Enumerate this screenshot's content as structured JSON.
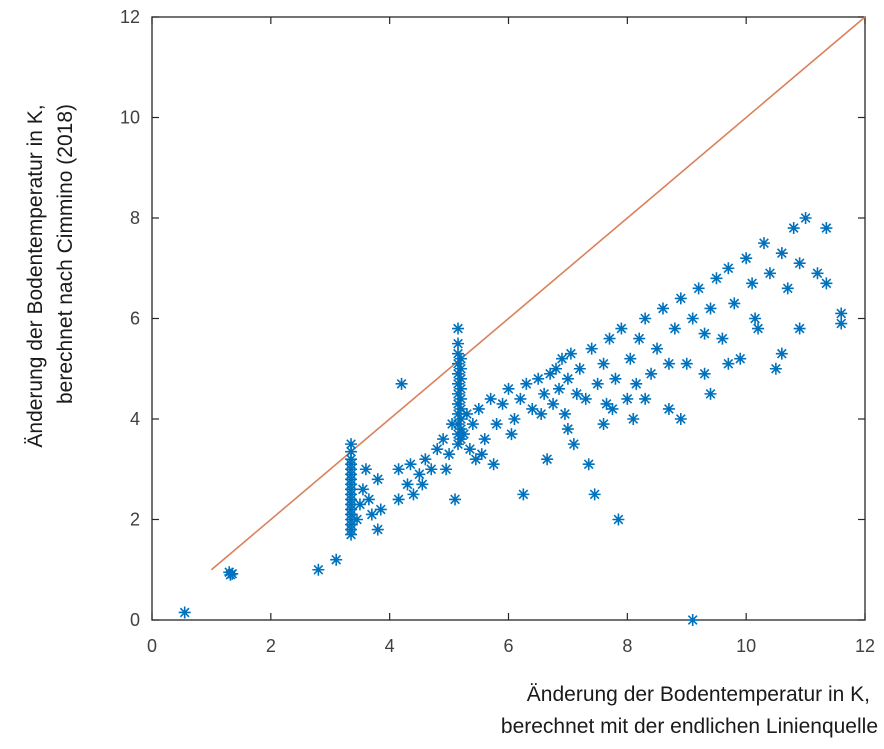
{
  "chart_data": {
    "type": "scatter",
    "xlabel": [
      "Änderung der Bodentemperatur in K,",
      "berechnet mit der endlichen Linienquelle"
    ],
    "ylabel": [
      "Änderung der Bodentemperatur in K,",
      "berechnet nach Cimmino (2018)"
    ],
    "xlim": [
      0,
      12
    ],
    "ylim": [
      0,
      12
    ],
    "xticks": [
      "0",
      "2",
      "4",
      "6",
      "8",
      "10",
      "12"
    ],
    "yticks": [
      "0",
      "2",
      "4",
      "6",
      "8",
      "10",
      "12"
    ],
    "grid": false,
    "legend": "none",
    "colors": {
      "points": "#0072bd",
      "reference_line": "#d9825b",
      "axes": "#262626"
    },
    "reference_line": {
      "x": [
        1,
        12
      ],
      "y": [
        1,
        12
      ]
    },
    "series": [
      {
        "marker": "asterisk",
        "points": [
          [
            0.55,
            0.15
          ],
          [
            1.3,
            0.95
          ],
          [
            1.32,
            0.9
          ],
          [
            1.35,
            0.92
          ],
          [
            2.8,
            1.0
          ],
          [
            3.1,
            1.2
          ],
          [
            3.35,
            1.7
          ],
          [
            3.35,
            1.8
          ],
          [
            3.35,
            1.9
          ],
          [
            3.35,
            2.0
          ],
          [
            3.35,
            2.1
          ],
          [
            3.35,
            2.2
          ],
          [
            3.35,
            2.3
          ],
          [
            3.35,
            2.4
          ],
          [
            3.35,
            2.5
          ],
          [
            3.35,
            2.6
          ],
          [
            3.35,
            2.7
          ],
          [
            3.35,
            2.8
          ],
          [
            3.35,
            2.9
          ],
          [
            3.35,
            3.0
          ],
          [
            3.35,
            3.1
          ],
          [
            3.35,
            3.2
          ],
          [
            3.35,
            3.35
          ],
          [
            3.35,
            3.5
          ],
          [
            3.45,
            2.0
          ],
          [
            3.5,
            2.3
          ],
          [
            3.55,
            2.6
          ],
          [
            3.65,
            2.4
          ],
          [
            3.7,
            2.1
          ],
          [
            3.8,
            1.8
          ],
          [
            3.8,
            2.8
          ],
          [
            3.85,
            2.2
          ],
          [
            3.6,
            3.0
          ],
          [
            4.15,
            2.4
          ],
          [
            4.15,
            3.0
          ],
          [
            4.2,
            4.7
          ],
          [
            4.3,
            2.7
          ],
          [
            4.35,
            3.1
          ],
          [
            4.4,
            2.5
          ],
          [
            4.5,
            2.9
          ],
          [
            4.6,
            3.2
          ],
          [
            4.7,
            3.0
          ],
          [
            4.8,
            3.4
          ],
          [
            4.9,
            3.6
          ],
          [
            5.0,
            3.3
          ],
          [
            5.05,
            3.9
          ],
          [
            5.1,
            2.4
          ],
          [
            5.15,
            3.5
          ],
          [
            5.15,
            3.7
          ],
          [
            5.15,
            3.9
          ],
          [
            5.15,
            4.1
          ],
          [
            5.15,
            4.3
          ],
          [
            5.15,
            4.5
          ],
          [
            5.15,
            4.7
          ],
          [
            5.15,
            4.9
          ],
          [
            5.15,
            5.1
          ],
          [
            5.15,
            5.3
          ],
          [
            5.15,
            5.5
          ],
          [
            5.15,
            5.8
          ],
          [
            5.2,
            3.6
          ],
          [
            5.2,
            3.8
          ],
          [
            5.2,
            4.0
          ],
          [
            5.2,
            4.2
          ],
          [
            5.2,
            4.4
          ],
          [
            5.2,
            4.6
          ],
          [
            5.2,
            4.8
          ],
          [
            5.2,
            5.0
          ],
          [
            5.2,
            5.2
          ],
          [
            5.25,
            3.7
          ],
          [
            5.3,
            4.1
          ],
          [
            5.35,
            3.4
          ],
          [
            5.4,
            3.9
          ],
          [
            5.45,
            3.2
          ],
          [
            5.5,
            4.2
          ],
          [
            5.6,
            3.6
          ],
          [
            5.7,
            4.4
          ],
          [
            5.75,
            3.1
          ],
          [
            5.8,
            3.9
          ],
          [
            5.9,
            4.3
          ],
          [
            6.0,
            4.6
          ],
          [
            6.1,
            4.0
          ],
          [
            6.2,
            4.4
          ],
          [
            6.25,
            2.5
          ],
          [
            6.3,
            4.7
          ],
          [
            6.4,
            4.2
          ],
          [
            6.5,
            4.8
          ],
          [
            6.6,
            4.5
          ],
          [
            6.65,
            3.2
          ],
          [
            6.7,
            4.9
          ],
          [
            6.75,
            4.3
          ],
          [
            6.8,
            5.0
          ],
          [
            6.85,
            4.6
          ],
          [
            6.9,
            5.2
          ],
          [
            6.95,
            4.1
          ],
          [
            7.0,
            3.8
          ],
          [
            7.0,
            4.8
          ],
          [
            7.05,
            5.3
          ],
          [
            7.1,
            3.5
          ],
          [
            7.15,
            4.5
          ],
          [
            7.2,
            5.0
          ],
          [
            7.3,
            4.4
          ],
          [
            7.35,
            3.1
          ],
          [
            7.4,
            5.4
          ],
          [
            7.45,
            2.5
          ],
          [
            7.5,
            4.7
          ],
          [
            7.6,
            5.1
          ],
          [
            7.65,
            4.3
          ],
          [
            7.7,
            5.6
          ],
          [
            7.8,
            4.8
          ],
          [
            7.85,
            2.0
          ],
          [
            7.9,
            5.8
          ],
          [
            8.0,
            4.4
          ],
          [
            8.05,
            5.2
          ],
          [
            8.1,
            4.0
          ],
          [
            8.2,
            5.6
          ],
          [
            8.3,
            6.0
          ],
          [
            8.4,
            4.9
          ],
          [
            8.5,
            5.4
          ],
          [
            8.6,
            6.2
          ],
          [
            8.7,
            4.2
          ],
          [
            8.8,
            5.8
          ],
          [
            8.9,
            6.4
          ],
          [
            9.0,
            5.1
          ],
          [
            9.1,
            6.0
          ],
          [
            9.1,
            0.0
          ],
          [
            9.2,
            6.6
          ],
          [
            9.3,
            4.9
          ],
          [
            9.4,
            6.2
          ],
          [
            9.5,
            6.8
          ],
          [
            9.6,
            5.6
          ],
          [
            9.7,
            7.0
          ],
          [
            9.8,
            6.3
          ],
          [
            9.9,
            5.2
          ],
          [
            10.0,
            7.2
          ],
          [
            10.1,
            6.7
          ],
          [
            10.2,
            5.8
          ],
          [
            10.3,
            7.5
          ],
          [
            10.4,
            6.9
          ],
          [
            10.5,
            5.0
          ],
          [
            10.6,
            7.3
          ],
          [
            10.7,
            6.6
          ],
          [
            10.8,
            7.8
          ],
          [
            10.9,
            5.8
          ],
          [
            11.0,
            8.0
          ],
          [
            11.35,
            7.8
          ],
          [
            11.35,
            6.7
          ],
          [
            11.6,
            6.1
          ],
          [
            11.6,
            5.9
          ],
          [
            7.6,
            3.9
          ],
          [
            8.3,
            4.4
          ],
          [
            8.9,
            4.0
          ],
          [
            9.4,
            4.5
          ],
          [
            9.7,
            5.1
          ],
          [
            10.6,
            5.3
          ],
          [
            11.2,
            6.9
          ],
          [
            10.9,
            7.1
          ],
          [
            10.15,
            6.0
          ],
          [
            9.3,
            5.7
          ],
          [
            8.7,
            5.1
          ],
          [
            8.15,
            4.7
          ],
          [
            7.75,
            4.2
          ],
          [
            6.55,
            4.1
          ],
          [
            6.05,
            3.7
          ],
          [
            5.55,
            3.3
          ],
          [
            4.95,
            3.0
          ],
          [
            4.55,
            2.7
          ]
        ]
      }
    ]
  }
}
